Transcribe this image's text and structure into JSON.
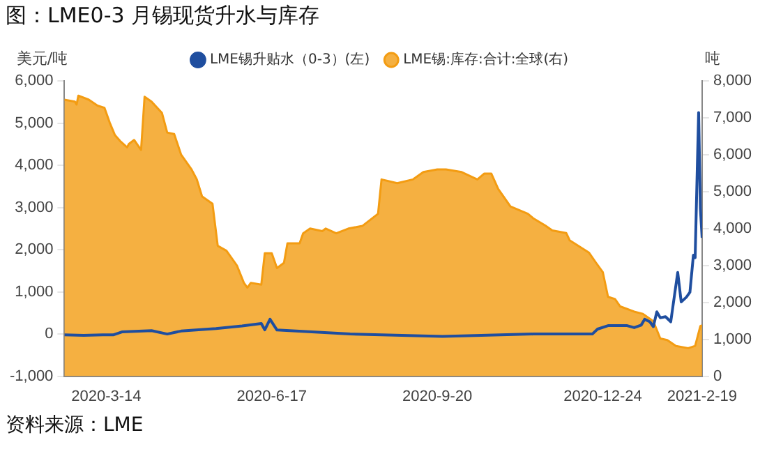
{
  "chart_data": {
    "type": "line",
    "title": "图：LME0-3 月锡现货升水与库存",
    "ylabel": "美元/吨",
    "y2label": "吨",
    "annotations": [
      "资料来源：LME"
    ],
    "xlim": [
      "2020-02-19",
      "2021-02-19"
    ],
    "xticks": [
      {
        "value": "2020-03-14",
        "label": "2020-3-14"
      },
      {
        "value": "2020-06-17",
        "label": "2020-6-17"
      },
      {
        "value": "2020-09-20",
        "label": "2020-9-20"
      },
      {
        "value": "2020-12-24",
        "label": "2020-12-24"
      },
      {
        "value": "2021-02-19",
        "label": "2021-2-19"
      }
    ],
    "ylim": [
      -1000,
      6000
    ],
    "yticks": [
      {
        "value": -1000,
        "label": "-1,000"
      },
      0,
      {
        "value": 1000,
        "label": "1,000"
      },
      {
        "value": 2000,
        "label": "2,000"
      },
      {
        "value": 3000,
        "label": "3,000"
      },
      {
        "value": 4000,
        "label": "4,000"
      },
      {
        "value": 5000,
        "label": "5,000"
      },
      {
        "value": 6000,
        "label": "6,000"
      }
    ],
    "y2lim": [
      0,
      8000
    ],
    "y2ticks": [
      0,
      {
        "value": 1000,
        "label": "1,000"
      },
      {
        "value": 2000,
        "label": "2,000"
      },
      {
        "value": 3000,
        "label": "3,000"
      },
      {
        "value": 4000,
        "label": "4,000"
      },
      {
        "value": 5000,
        "label": "5,000"
      },
      {
        "value": 6000,
        "label": "6,000"
      },
      {
        "value": 7000,
        "label": "7,000"
      },
      {
        "value": 8000,
        "label": "8,000"
      }
    ],
    "grid": false,
    "legend": "top",
    "marker": "none",
    "line_style": "solid",
    "series": [
      {
        "name": "LME锡升贴水（0-3）(左)",
        "type": "line",
        "color": "#1f4e9f",
        "x": [
          "2020-02-19",
          "2020-03-01",
          "2020-03-12",
          "2020-03-18",
          "2020-03-23",
          "2020-04-09",
          "2020-04-18",
          "2020-04-26",
          "2020-05-16",
          "2020-05-31",
          "2020-06-11",
          "2020-06-13",
          "2020-06-16",
          "2020-06-20",
          "2020-08-01",
          "2020-09-23",
          "2020-11-14",
          "2020-12-18",
          "2020-12-21",
          "2020-12-27",
          "2021-01-07",
          "2021-01-11",
          "2021-01-15",
          "2021-01-17",
          "2021-01-20",
          "2021-01-22",
          "2021-01-24",
          "2021-01-26",
          "2021-01-29",
          "2021-02-01",
          "2021-02-05",
          "2021-02-07",
          "2021-02-10",
          "2021-02-12",
          "2021-02-14",
          "2021-02-15",
          "2021-02-17",
          "2021-02-18",
          "2021-02-19"
        ],
        "values": [
          -20,
          -30,
          -20,
          -20,
          50,
          80,
          0,
          70,
          130,
          190,
          250,
          100,
          350,
          95,
          0,
          -55,
          0,
          0,
          117,
          198,
          198,
          152,
          210,
          350,
          290,
          175,
          525,
          385,
          410,
          290,
          1460,
          760,
          875,
          990,
          1870,
          1810,
          5250,
          2980,
          2280
        ]
      },
      {
        "name": "LME锡:库存:合计:全球(右)",
        "type": "area",
        "axis": "y2",
        "color": "#f39c12",
        "x": [
          "2020-02-19",
          "2020-02-25",
          "2020-02-26",
          "2020-02-27",
          "2020-03-04",
          "2020-03-09",
          "2020-03-13",
          "2020-03-16",
          "2020-03-19",
          "2020-03-22",
          "2020-03-26",
          "2020-03-27",
          "2020-03-30",
          "2020-04-03",
          "2020-04-05",
          "2020-04-09",
          "2020-04-15",
          "2020-04-18",
          "2020-04-22",
          "2020-04-26",
          "2020-05-02",
          "2020-05-05",
          "2020-05-08",
          "2020-05-14",
          "2020-05-17",
          "2020-05-22",
          "2020-05-28",
          "2020-06-01",
          "2020-06-03",
          "2020-06-05",
          "2020-06-11",
          "2020-06-13",
          "2020-06-17",
          "2020-06-20",
          "2020-06-24",
          "2020-06-26",
          "2020-07-03",
          "2020-07-05",
          "2020-07-09",
          "2020-07-16",
          "2020-07-18",
          "2020-07-24",
          "2020-07-31",
          "2020-08-08",
          "2020-08-17",
          "2020-08-19",
          "2020-08-28",
          "2020-09-06",
          "2020-09-12",
          "2020-09-20",
          "2020-09-25",
          "2020-10-04",
          "2020-10-13",
          "2020-10-17",
          "2020-10-21",
          "2020-10-25",
          "2020-11-01",
          "2020-11-11",
          "2020-11-14",
          "2020-11-21",
          "2020-11-25",
          "2020-12-03",
          "2020-12-05",
          "2020-12-16",
          "2020-12-20",
          "2020-12-24",
          "2020-12-27",
          "2020-12-31",
          "2021-01-03",
          "2021-01-11",
          "2021-01-16",
          "2021-01-22",
          "2021-01-26",
          "2021-01-30",
          "2021-02-04",
          "2021-02-11",
          "2021-02-15",
          "2021-02-18",
          "2021-02-19"
        ],
        "values": [
          7490,
          7440,
          7360,
          7600,
          7490,
          7330,
          7270,
          6870,
          6530,
          6370,
          6200,
          6290,
          6400,
          6130,
          7570,
          7440,
          7130,
          6600,
          6560,
          6000,
          5600,
          5330,
          4870,
          4670,
          3530,
          3400,
          3000,
          2530,
          2400,
          2530,
          2480,
          3330,
          3330,
          2930,
          3070,
          3600,
          3600,
          3870,
          4000,
          3930,
          4000,
          3870,
          4000,
          4070,
          4400,
          5330,
          5230,
          5330,
          5530,
          5600,
          5600,
          5530,
          5330,
          5490,
          5490,
          5070,
          4600,
          4400,
          4280,
          4080,
          3950,
          3880,
          3680,
          3350,
          3080,
          2820,
          2150,
          2090,
          1890,
          1750,
          1690,
          1490,
          1020,
          980,
          820,
          760,
          820,
          1360,
          1380
        ]
      }
    ]
  }
}
